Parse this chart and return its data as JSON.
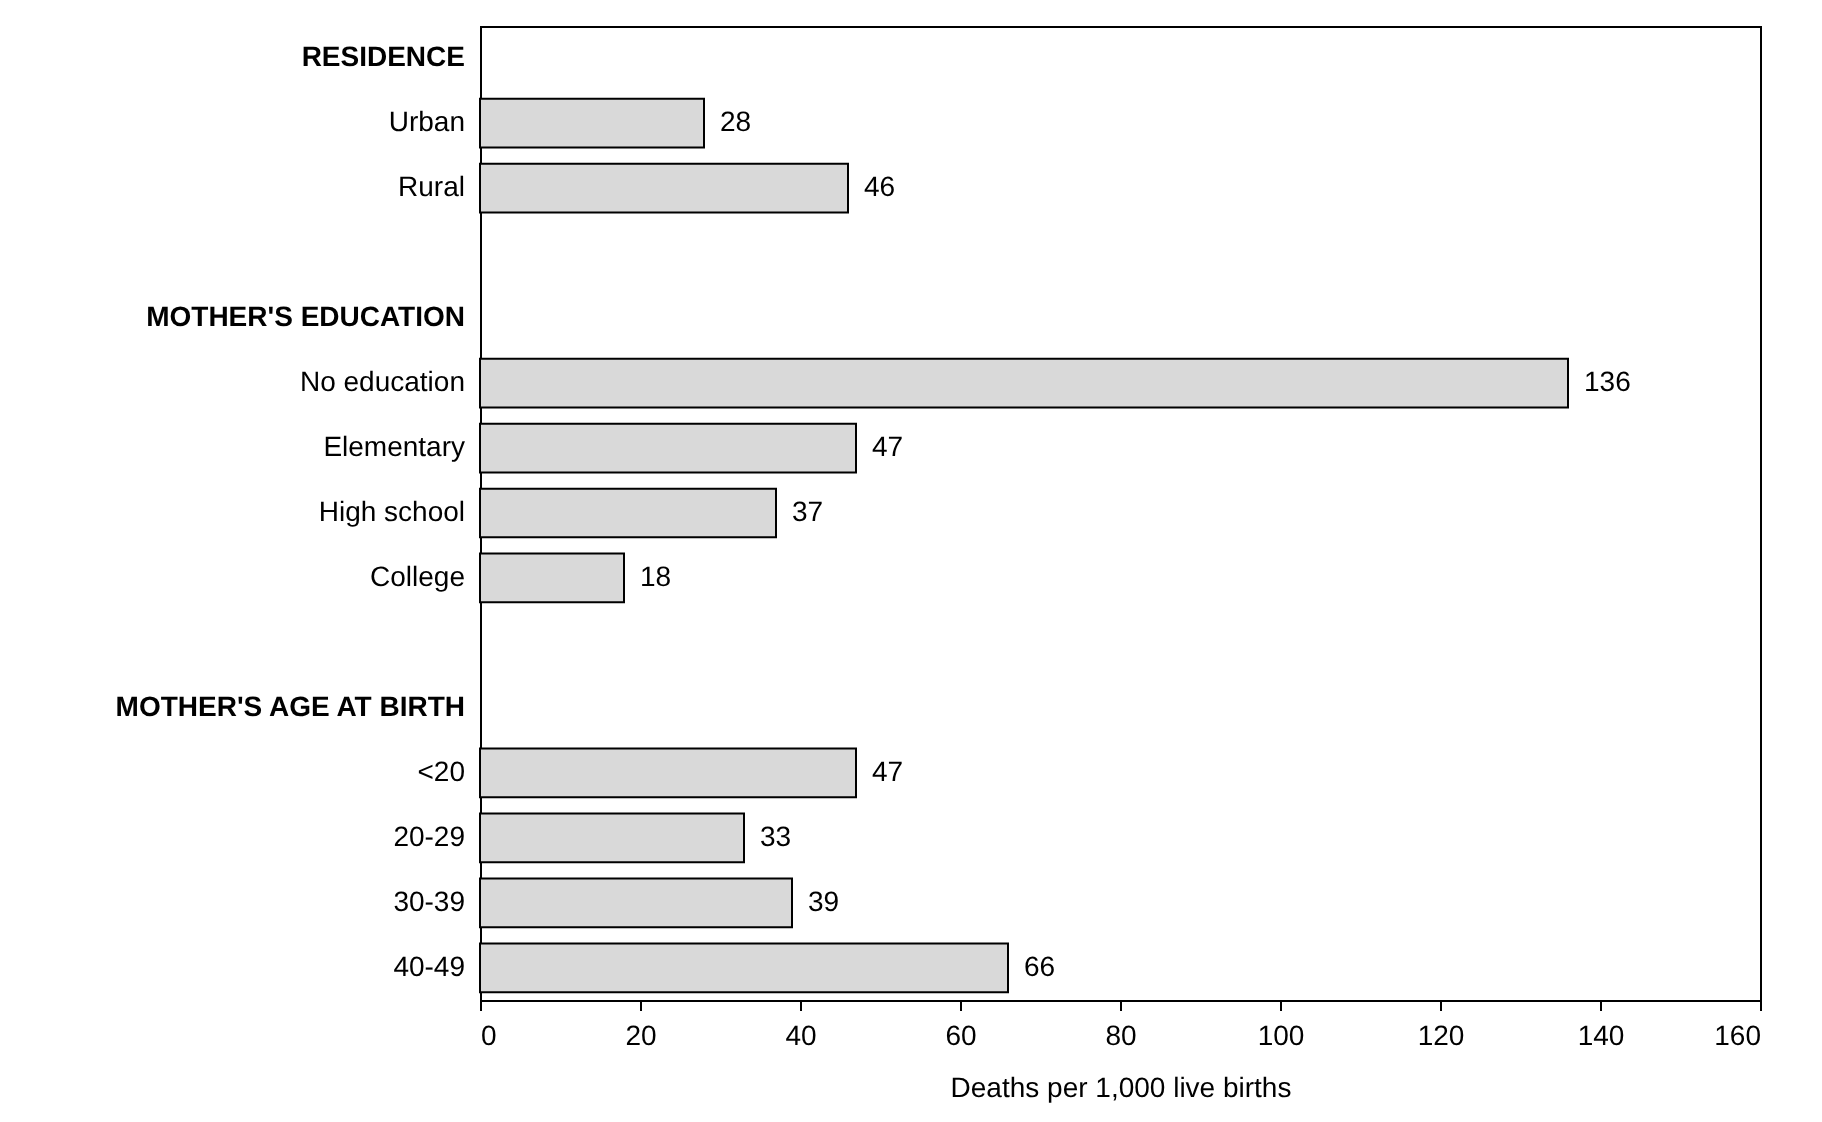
{
  "chart_data": {
    "type": "bar",
    "orientation": "horizontal",
    "xlabel": "Deaths per 1,000 live births",
    "categories": [
      "RESIDENCE",
      "Urban",
      "Rural",
      null,
      "MOTHER'S EDUCATION",
      "No education",
      "Elementary",
      "High school",
      "College",
      null,
      "MOTHER'S AGE AT BIRTH",
      "<20",
      "20-29",
      "30-39",
      "40-49"
    ],
    "values": [
      null,
      28,
      46,
      null,
      null,
      136,
      47,
      37,
      18,
      null,
      null,
      47,
      33,
      39,
      66
    ],
    "color": "#d9d9d9",
    "xlim": [
      0,
      160
    ],
    "xticks": [
      0,
      20,
      40,
      60,
      80,
      100,
      120,
      140,
      160
    ],
    "data_labels": true
  }
}
